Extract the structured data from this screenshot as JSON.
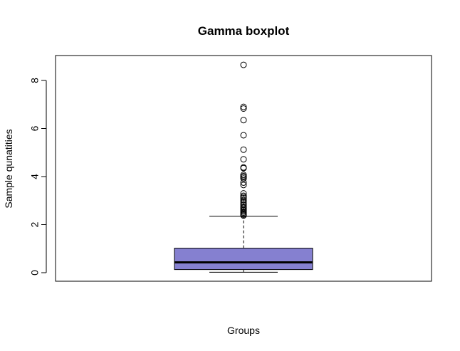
{
  "chart_data": {
    "type": "boxplot",
    "title": "Gamma boxplot",
    "xlabel": "Groups",
    "ylabel": "Sample qunatities",
    "ylim": [
      -0.3,
      9.0
    ],
    "yticks": [
      0,
      2,
      4,
      6,
      8
    ],
    "ytick_labels": [
      "0",
      "2",
      "4",
      "6",
      "8"
    ],
    "box_color": "#8580D0",
    "grid": false,
    "legend": "none",
    "box": {
      "whisker_low": 0.02,
      "q1": 0.13,
      "median": 0.43,
      "q3": 1.02,
      "whisker_high": 2.35
    },
    "outliers": [
      8.65,
      6.9,
      6.83,
      6.35,
      5.72,
      5.12,
      4.72,
      4.38,
      4.35,
      4.07,
      4.02,
      3.97,
      3.92,
      3.75,
      3.65,
      3.3,
      3.2,
      3.15,
      3.1,
      3.02,
      2.95,
      2.88,
      2.82,
      2.75,
      2.7,
      2.65,
      2.6,
      2.55,
      2.5,
      2.45,
      2.42,
      2.38
    ]
  }
}
